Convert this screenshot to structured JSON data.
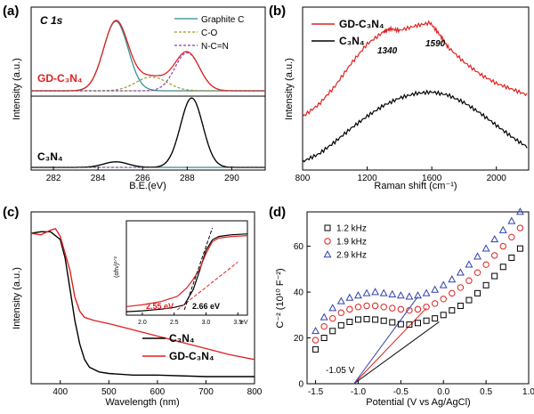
{
  "chart_data": [
    {
      "id": "a",
      "panel_label": "(a)",
      "type": "line",
      "title": "C 1s",
      "xlabel": "B.E.(eV)",
      "ylabel": "Intensity (a.u.)",
      "xlim": [
        281,
        291.5
      ],
      "xticks": [
        282,
        284,
        286,
        288,
        290
      ],
      "legend": [
        "Graphite C",
        "C-O",
        "N-C=N"
      ],
      "legend_colors": [
        "#2a8c8c",
        "#9a9a2a",
        "#8a3aa8"
      ],
      "samples": [
        {
          "name": "GD-C₃N₄",
          "color": "#e02020",
          "peaks": [
            {
              "center": 284.8,
              "height": 1.0,
              "sigma": 0.55
            },
            {
              "center": 286.4,
              "height": 0.2,
              "sigma": 0.7
            },
            {
              "center": 288.0,
              "height": 0.55,
              "sigma": 0.55
            }
          ]
        },
        {
          "name": "C₃N₄",
          "color": "#000000",
          "peaks": [
            {
              "center": 284.8,
              "height": 0.08,
              "sigma": 0.55
            },
            {
              "center": 288.2,
              "height": 1.0,
              "sigma": 0.5
            }
          ]
        }
      ]
    },
    {
      "id": "b",
      "panel_label": "(b)",
      "type": "line",
      "xlabel": "Raman shift (cm⁻¹)",
      "ylabel": "Intensity (a.u.)",
      "xlim": [
        800,
        2200
      ],
      "xticks": [
        800,
        1200,
        1600,
        2000
      ],
      "annotations": [
        "1340",
        "1590"
      ],
      "series": [
        {
          "name": "GD-C₃N₄",
          "color": "#e02020",
          "x": [
            800,
            900,
            1000,
            1100,
            1200,
            1300,
            1340,
            1400,
            1500,
            1590,
            1650,
            1700,
            1800,
            1900,
            2000,
            2100,
            2200
          ],
          "y": [
            0.3,
            0.38,
            0.5,
            0.65,
            0.78,
            0.86,
            0.88,
            0.87,
            0.9,
            0.92,
            0.84,
            0.76,
            0.66,
            0.58,
            0.52,
            0.48,
            0.44
          ]
        },
        {
          "name": "C₃N₄",
          "color": "#000000",
          "x": [
            800,
            900,
            1000,
            1100,
            1200,
            1300,
            1400,
            1500,
            1600,
            1700,
            1800,
            1900,
            2000,
            2100,
            2200
          ],
          "y": [
            0.05,
            0.1,
            0.18,
            0.27,
            0.35,
            0.42,
            0.47,
            0.5,
            0.51,
            0.49,
            0.44,
            0.37,
            0.29,
            0.21,
            0.14
          ]
        }
      ]
    },
    {
      "id": "c",
      "panel_label": "(c)",
      "type": "line",
      "xlabel": "Wavelength (nm)",
      "ylabel": "Intensity (a.u.)",
      "xlim": [
        340,
        800
      ],
      "xticks": [
        400,
        500,
        600,
        700,
        800
      ],
      "series": [
        {
          "name": "C₃N₄",
          "color": "#000000",
          "x": [
            340,
            360,
            380,
            400,
            410,
            420,
            430,
            440,
            450,
            460,
            480,
            500,
            550,
            600,
            700,
            800
          ],
          "y": [
            0.96,
            0.97,
            0.97,
            0.92,
            0.8,
            0.6,
            0.4,
            0.25,
            0.15,
            0.1,
            0.07,
            0.06,
            0.05,
            0.05,
            0.04,
            0.04
          ]
        },
        {
          "name": "GD-C₃N₄",
          "color": "#e02020",
          "x": [
            340,
            360,
            380,
            390,
            400,
            420,
            430,
            440,
            450,
            470,
            500,
            550,
            600,
            650,
            700,
            750,
            800
          ],
          "y": [
            0.96,
            0.95,
            0.98,
            0.99,
            0.94,
            0.72,
            0.55,
            0.46,
            0.42,
            0.4,
            0.38,
            0.34,
            0.3,
            0.26,
            0.22,
            0.18,
            0.15
          ]
        }
      ],
      "inset": {
        "ylabel": "(αhν)¹ᐟ²",
        "xticks": [
          "2.0",
          "2.5",
          "3.0",
          "3.5"
        ],
        "xunit": "eV",
        "xlim": [
          1.75,
          3.65
        ],
        "annotations": [
          {
            "text": "2.55 eV",
            "color": "#e02020"
          },
          {
            "text": "2.66 eV",
            "color": "#000000"
          }
        ],
        "series": [
          {
            "color": "#000000",
            "x": [
              1.75,
              2.0,
              2.3,
              2.5,
              2.66,
              2.8,
              2.9,
              3.0,
              3.1,
              3.2,
              3.4,
              3.65
            ],
            "y": [
              0.02,
              0.03,
              0.05,
              0.07,
              0.1,
              0.28,
              0.5,
              0.74,
              0.86,
              0.9,
              0.92,
              0.93
            ]
          },
          {
            "color": "#e02020",
            "x": [
              1.75,
              2.0,
              2.3,
              2.55,
              2.7,
              2.8,
              2.9,
              3.0,
              3.1,
              3.2,
              3.4,
              3.65
            ],
            "y": [
              0.08,
              0.1,
              0.14,
              0.2,
              0.3,
              0.4,
              0.52,
              0.7,
              0.84,
              0.88,
              0.9,
              0.91
            ]
          }
        ]
      }
    },
    {
      "id": "d",
      "panel_label": "(d)",
      "type": "scatter",
      "xlabel": "Potential (V vs Ag/AgCl)",
      "ylabel": "C⁻² (10¹⁰ F⁻²)",
      "xlim": [
        -1.6,
        1.0
      ],
      "ylim": [
        0,
        75
      ],
      "xticks": [
        -1.5,
        -1.0,
        -0.5,
        0.0,
        0.5,
        1.0
      ],
      "yticks": [
        0,
        20,
        40,
        60
      ],
      "annotation": "-1.05 V",
      "series": [
        {
          "name": "1.2 kHz",
          "color": "#000000",
          "marker": "square",
          "x": [
            -1.5,
            -1.4,
            -1.3,
            -1.2,
            -1.1,
            -1.0,
            -0.9,
            -0.8,
            -0.7,
            -0.6,
            -0.5,
            -0.4,
            -0.3,
            -0.2,
            -0.1,
            0.0,
            0.1,
            0.2,
            0.3,
            0.4,
            0.5,
            0.6,
            0.7,
            0.8,
            0.9
          ],
          "y": [
            15,
            20,
            23,
            25.5,
            27,
            28,
            28.2,
            28,
            27.5,
            26.8,
            26,
            25.8,
            26.5,
            27.5,
            28.5,
            30,
            32,
            34,
            36.5,
            39.5,
            43,
            47,
            51,
            55,
            59
          ]
        },
        {
          "name": "1.9 kHz",
          "color": "#e02020",
          "marker": "circle",
          "x": [
            -1.5,
            -1.4,
            -1.3,
            -1.2,
            -1.1,
            -1.0,
            -0.9,
            -0.8,
            -0.7,
            -0.6,
            -0.5,
            -0.4,
            -0.3,
            -0.2,
            -0.1,
            0.0,
            0.1,
            0.2,
            0.3,
            0.4,
            0.5,
            0.6,
            0.7,
            0.8,
            0.9
          ],
          "y": [
            19,
            25,
            28.5,
            31,
            32.5,
            33.5,
            34,
            34,
            33.5,
            33,
            32.5,
            32,
            32.5,
            33.5,
            35,
            37,
            39.5,
            42,
            45,
            48.5,
            52,
            56,
            60,
            64,
            68
          ]
        },
        {
          "name": "2.9 kHz",
          "color": "#3040b0",
          "marker": "triangle",
          "x": [
            -1.5,
            -1.4,
            -1.3,
            -1.2,
            -1.1,
            -1.0,
            -0.9,
            -0.8,
            -0.7,
            -0.6,
            -0.5,
            -0.4,
            -0.3,
            -0.2,
            -0.1,
            0.0,
            0.1,
            0.2,
            0.3,
            0.4,
            0.5,
            0.6,
            0.7,
            0.8,
            0.9
          ],
          "y": [
            23,
            29,
            33,
            36,
            37.5,
            38.5,
            39.5,
            40,
            39.5,
            39,
            38.5,
            38,
            38.5,
            39.5,
            41,
            43,
            45.5,
            48.5,
            52,
            55.5,
            59,
            63,
            67,
            71,
            75
          ]
        }
      ],
      "fit_lines": [
        {
          "color": "#000000",
          "x": [
            -1.05,
            -0.05
          ],
          "y": [
            0,
            27
          ]
        },
        {
          "color": "#e02020",
          "x": [
            -1.05,
            -0.2
          ],
          "y": [
            0,
            33
          ]
        },
        {
          "color": "#3040b0",
          "x": [
            -1.05,
            -0.3
          ],
          "y": [
            0,
            38
          ]
        }
      ]
    }
  ]
}
